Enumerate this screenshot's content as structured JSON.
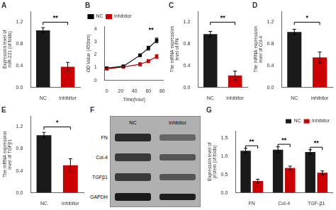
{
  "chart_data": [
    {
      "type": "bar",
      "title": "A",
      "categories": [
        "NC",
        "inhibitor"
      ],
      "values": [
        1.05,
        0.38
      ],
      "errors": [
        0.05,
        0.08
      ],
      "colors": [
        "#1a1a1a",
        "#cc0000"
      ],
      "ylabel": "Expression level of miR-221 (of folds)",
      "ylim": [
        0,
        1.4
      ],
      "yticks": [
        {
          "value": 0,
          "label": "0.0"
        },
        0.4,
        0.8,
        1.2
      ],
      "annotations": [
        {
          "text": "**",
          "y": 1.2
        }
      ],
      "grid": false
    },
    {
      "type": "line",
      "title": "B",
      "xlabel": "Time(hour)",
      "ylabel": "OD Value (450nm)",
      "x": [
        0,
        24,
        48,
        60,
        72
      ],
      "series": [
        {
          "name": "NC",
          "color": "#000000",
          "marker": "square",
          "values": [
            0.95,
            1.1,
            1.95,
            2.5,
            3.1
          ],
          "errors": [
            0.05,
            0.07,
            0.1,
            0.15,
            0.18
          ]
        },
        {
          "name": "inhibitor",
          "color": "#cc0000",
          "marker": "square",
          "values": [
            0.9,
            1.05,
            1.25,
            1.5,
            1.85
          ],
          "errors": [
            0.05,
            0.06,
            0.12,
            0.12,
            0.15
          ]
        }
      ],
      "xlim": [
        -3,
        82
      ],
      "xticks": [
        0,
        20,
        40,
        60,
        80
      ],
      "ylim": [
        0,
        4.2
      ],
      "yticks": [
        0,
        1,
        2,
        3,
        4
      ],
      "annotations": [
        {
          "text": "**",
          "x": 64,
          "y": 3.6
        }
      ],
      "legend": "upper left",
      "grid": false
    },
    {
      "type": "bar",
      "title": "C",
      "categories": [
        "NC",
        "inhibitor"
      ],
      "values": [
        0.98,
        0.22
      ],
      "errors": [
        0.05,
        0.08
      ],
      "colors": [
        "#1a1a1a",
        "#cc0000"
      ],
      "ylabel": "The mRNA expression level of FN",
      "ylim": [
        0,
        1.4
      ],
      "yticks": [
        {
          "value": 0,
          "label": "0.0"
        },
        0.4,
        0.8,
        1.2
      ],
      "annotations": [
        {
          "text": "**",
          "y": 1.2
        }
      ],
      "grid": false
    },
    {
      "type": "bar",
      "title": "D",
      "categories": [
        "NC",
        "inhibitor"
      ],
      "values": [
        1.02,
        0.55
      ],
      "errors": [
        0.05,
        0.1
      ],
      "colors": [
        "#1a1a1a",
        "#cc0000"
      ],
      "ylabel": "The mRNA expression level of Col-4",
      "ylim": [
        0,
        1.4
      ],
      "yticks": [
        {
          "value": 0,
          "label": "0.0"
        },
        0.4,
        0.8,
        1.2
      ],
      "annotations": [
        {
          "text": "*",
          "y": 1.2
        }
      ],
      "grid": false
    },
    {
      "type": "bar",
      "title": "E",
      "categories": [
        "NC",
        "inhibitor"
      ],
      "values": [
        1.05,
        0.5
      ],
      "errors": [
        0.05,
        0.12
      ],
      "colors": [
        "#1a1a1a",
        "#cc0000"
      ],
      "ylabel": "The mRNA expression level of TGFβ1",
      "ylim": [
        0,
        1.4
      ],
      "yticks": [
        {
          "value": 0,
          "label": "0.0"
        },
        0.4,
        0.8,
        1.2
      ],
      "annotations": [
        {
          "text": "*",
          "y": 1.2
        }
      ],
      "grid": false
    },
    {
      "type": "blot",
      "title": "F",
      "categories": [
        "FN",
        "Col-4",
        "TGFβ1",
        "GAPDH"
      ],
      "series": [
        {
          "name": "NC",
          "colors": [
            "#2a2a2a",
            "#3a3a3a",
            "#3a3a3a",
            "#1a1a1a"
          ]
        },
        {
          "name": "inhibitor",
          "colors": [
            "#666666",
            "#555555",
            "#555555",
            "#1e1e1e"
          ]
        }
      ],
      "color": "#b0b0b0"
    },
    {
      "type": "bar",
      "title": "G",
      "categories": [
        "FN",
        "Col-4",
        "TGF-β1"
      ],
      "series": [
        {
          "name": "NC",
          "color": "#1a1a1a",
          "values": [
            1.15,
            1.18,
            1.12
          ],
          "errors": [
            0.07,
            0.08,
            0.06
          ]
        },
        {
          "name": "Inhibitor",
          "color": "#cc0000",
          "values": [
            0.32,
            0.68,
            0.55
          ],
          "errors": [
            0.05,
            0.05,
            0.05
          ]
        }
      ],
      "ylabel": "Expression level of protein (of folds)",
      "ylim": [
        0,
        1.7
      ],
      "yticks": [
        {
          "value": 0,
          "label": "0.0"
        },
        0.5,
        {
          "value": 1,
          "label": "1.0"
        },
        1.5
      ],
      "annotations": [
        {
          "text": "**",
          "category": "FN",
          "y": 1.29
        },
        {
          "text": "**",
          "category": "Col-4",
          "y": 1.33
        },
        {
          "text": "**",
          "category": "TGF-β1",
          "y": 1.25
        }
      ],
      "legend": "upper right",
      "grid": false
    }
  ]
}
